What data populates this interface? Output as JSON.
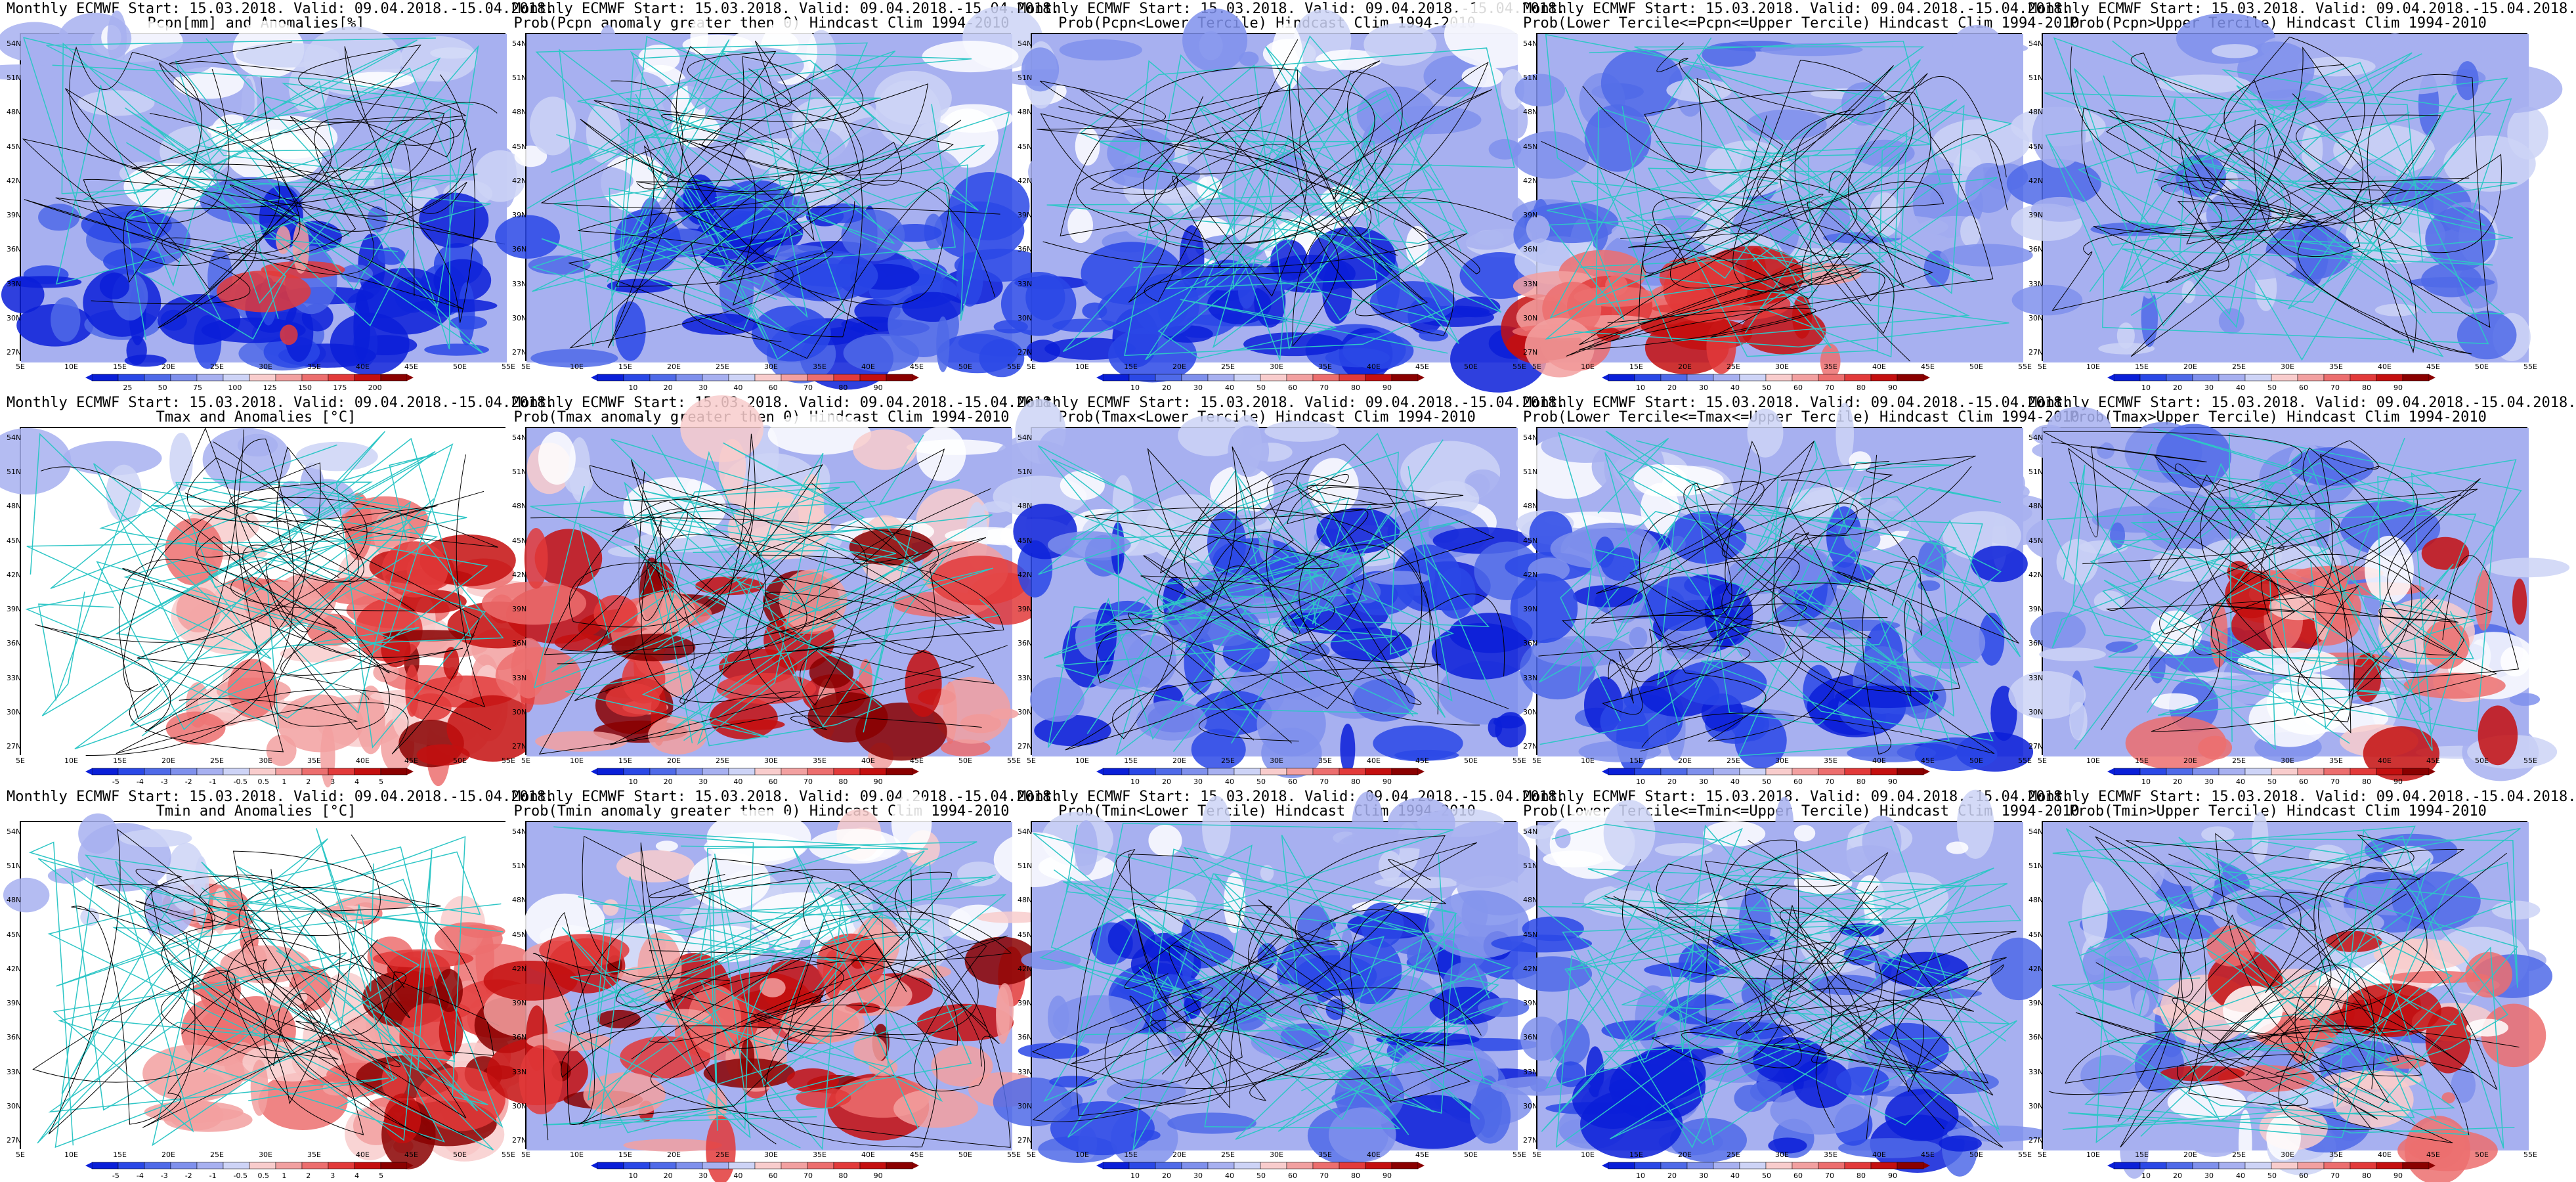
{
  "panels": [
    {
      "line1": "Monthly ECMWF Start: 15.03.2018. Valid: 09.04.2018.-15.04.2018.",
      "line2": "Pcpn[mm] and Anomalies[%]",
      "scheme": "precip",
      "colorbar_labels": [
        "25",
        "50",
        "75",
        "100",
        "125",
        "150",
        "175",
        "200"
      ]
    },
    {
      "line1": "Monthly ECMWF Start: 15.03.2018. Valid: 09.04.2018.-15.04.2018.",
      "line2": "Prob(Pcpn anomaly greater then 0) Hindcast Clim 1994-2010",
      "scheme": "prob",
      "colorbar_labels": [
        "10",
        "20",
        "30",
        "40",
        "60",
        "70",
        "80",
        "90"
      ]
    },
    {
      "line1": "Monthly ECMWF Start: 15.03.2018. Valid: 09.04.2018.-15.04.2018.",
      "line2": "Prob(Pcpn<Lower Tercile) Hindcast Clim 1994-2010",
      "scheme": "prob",
      "colorbar_labels": [
        "10",
        "20",
        "30",
        "40",
        "50",
        "60",
        "70",
        "80",
        "90"
      ]
    },
    {
      "line1": "Monthly ECMWF Start: 15.03.2018. Valid: 09.04.2018.-15.04.2018.",
      "line2": "Prob(Lower Tercile<=Pcpn<=Upper Tercile) Hindcast Clim 1994-2010",
      "scheme": "prob",
      "colorbar_labels": [
        "10",
        "20",
        "30",
        "40",
        "50",
        "60",
        "70",
        "80",
        "90"
      ]
    },
    {
      "line1": "Monthly ECMWF Start: 15.03.2018. Valid: 09.04.2018.-15.04.2018.",
      "line2": "Prob(Pcpn>Upper Tercile) Hindcast Clim 1994-2010",
      "scheme": "prob",
      "colorbar_labels": [
        "10",
        "20",
        "30",
        "40",
        "50",
        "60",
        "70",
        "80",
        "90"
      ]
    },
    {
      "line1": "Monthly ECMWF Start: 15.03.2018. Valid: 09.04.2018.-15.04.2018.",
      "line2": "Tmax and Anomalies [°C]",
      "scheme": "anom",
      "colorbar_labels": [
        "-5",
        "-4",
        "-3",
        "-2",
        "-1",
        "-0.5",
        "0.5",
        "1",
        "2",
        "3",
        "4",
        "5"
      ]
    },
    {
      "line1": "Monthly ECMWF Start: 15.03.2018. Valid: 09.04.2018.-15.04.2018.",
      "line2": "Prob(Tmax anomaly greater then 0) Hindcast Clim 1994-2010",
      "scheme": "prob",
      "colorbar_labels": [
        "10",
        "20",
        "30",
        "40",
        "60",
        "70",
        "80",
        "90"
      ]
    },
    {
      "line1": "Monthly ECMWF Start: 15.03.2018. Valid: 09.04.2018.-15.04.2018.",
      "line2": "Prob(Tmax<Lower Tercile) Hindcast Clim 1994-2010",
      "scheme": "prob",
      "colorbar_labels": [
        "10",
        "20",
        "30",
        "40",
        "50",
        "60",
        "70",
        "80",
        "90"
      ]
    },
    {
      "line1": "Monthly ECMWF Start: 15.03.2018. Valid: 09.04.2018.-15.04.2018.",
      "line2": "Prob(Lower Tercile<=Tmax<=Upper Tercile) Hindcast Clim 1994-2010",
      "scheme": "prob",
      "colorbar_labels": [
        "10",
        "20",
        "30",
        "40",
        "50",
        "60",
        "70",
        "80",
        "90"
      ]
    },
    {
      "line1": "Monthly ECMWF Start: 15.03.2018. Valid: 09.04.2018.-15.04.2018.",
      "line2": "Prob(Tmax>Upper Tercile) Hindcast Clim 1994-2010",
      "scheme": "prob",
      "colorbar_labels": [
        "10",
        "20",
        "30",
        "40",
        "50",
        "60",
        "70",
        "80",
        "90"
      ]
    },
    {
      "line1": "Monthly ECMWF Start: 15.03.2018. Valid: 09.04.2018.-15.04.2018.",
      "line2": "Tmin and Anomalies [°C]",
      "scheme": "anom",
      "colorbar_labels": [
        "-5",
        "-4",
        "-3",
        "-2",
        "-1",
        "-0.5",
        "0.5",
        "1",
        "2",
        "3",
        "4",
        "5"
      ]
    },
    {
      "line1": "Monthly ECMWF Start: 15.03.2018. Valid: 09.04.2018.-15.04.2018.",
      "line2": "Prob(Tmin anomaly greater then 0) Hindcast Clim 1994-2010",
      "scheme": "prob",
      "colorbar_labels": [
        "10",
        "20",
        "30",
        "40",
        "60",
        "70",
        "80",
        "90"
      ]
    },
    {
      "line1": "Monthly ECMWF Start: 15.03.2018. Valid: 09.04.2018.-15.04.2018.",
      "line2": "Prob(Tmin<Lower Tercile) Hindcast Clim 1994-2010",
      "scheme": "prob",
      "colorbar_labels": [
        "10",
        "20",
        "30",
        "40",
        "50",
        "60",
        "70",
        "80",
        "90"
      ]
    },
    {
      "line1": "Monthly ECMWF Start: 15.03.2018. Valid: 09.04.2018.-15.04.2018.",
      "line2": "Prob(Lower Tercile<=Tmin<=Upper Tercile) Hindcast Clim 1994-2010",
      "scheme": "prob",
      "colorbar_labels": [
        "10",
        "20",
        "30",
        "40",
        "50",
        "60",
        "70",
        "80",
        "90"
      ]
    },
    {
      "line1": "Monthly ECMWF Start: 15.03.2018. Valid: 09.04.2018.-15.04.2018.",
      "line2": "Prob(Tmin>Upper Tercile) Hindcast Clim 1994-2010",
      "scheme": "prob",
      "colorbar_labels": [
        "10",
        "20",
        "30",
        "40",
        "50",
        "60",
        "70",
        "80",
        "90"
      ]
    }
  ],
  "lat_labels": [
    "54N",
    "51N",
    "48N",
    "45N",
    "42N",
    "39N",
    "36N",
    "33N",
    "30N",
    "27N"
  ],
  "lon_labels": [
    "5E",
    "10E",
    "15E",
    "20E",
    "25E",
    "30E",
    "35E",
    "40E",
    "45E",
    "50E",
    "55E"
  ],
  "colors": {
    "blue_scale": [
      "#0a1fd8",
      "#2a48e6",
      "#4f6ae8",
      "#7f90ec",
      "#a7b0f0",
      "#cdd3f6",
      "#ffffff"
    ],
    "red_scale": [
      "#ffffff",
      "#f8cccc",
      "#f2a0a0",
      "#ec6e6e",
      "#e23a3a",
      "#c40f0f",
      "#8a0000"
    ],
    "coast": "#2ec6c6",
    "contour": "#000000"
  }
}
